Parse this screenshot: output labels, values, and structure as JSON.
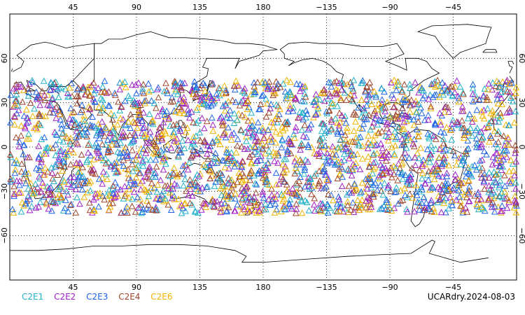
{
  "map": {
    "projection": "cylindrical-equidistant",
    "center_lon": 180,
    "lat_range": [
      -90,
      90
    ],
    "lon_ticks": [
      45,
      90,
      135,
      180,
      -135,
      -90,
      -45
    ],
    "lon_tick_labels": [
      "45",
      "90",
      "135",
      "180",
      "−135",
      "−90",
      "−45"
    ],
    "lat_ticks": [
      60,
      30,
      0,
      -30,
      -60
    ],
    "lat_tick_labels": [
      "60",
      "30",
      "0",
      "−30",
      "−60"
    ],
    "grid": "dotted",
    "land_fill": "none",
    "coastline_color": "#000000",
    "marker": "open-triangle",
    "occultation_lat_band": [
      -45,
      45
    ]
  },
  "legend": {
    "series": [
      {
        "label": "C2E1",
        "color": "#22b3c8"
      },
      {
        "label": "C2E2",
        "color": "#a020c8"
      },
      {
        "label": "C2E3",
        "color": "#1e64e6"
      },
      {
        "label": "C2E4",
        "color": "#a0462d"
      },
      {
        "label": "C2E6",
        "color": "#f0b400"
      }
    ]
  },
  "caption": "UCARdry.2024-08-03"
}
